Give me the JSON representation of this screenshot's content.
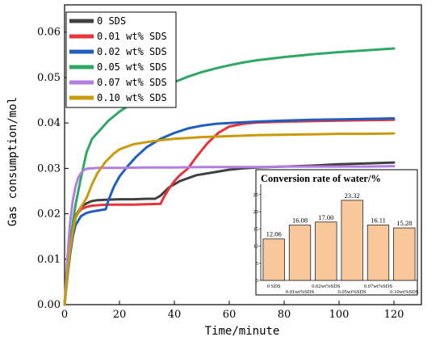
{
  "chart_data": [
    {
      "type": "line",
      "title": "",
      "xlabel": "Time/minute",
      "ylabel": "Gas consumption/mol",
      "xlim": [
        0,
        130
      ],
      "ylim": [
        0,
        0.066
      ],
      "xticks": [
        "0",
        "20",
        "40",
        "60",
        "80",
        "100",
        "120"
      ],
      "yticks": [
        "0.00",
        "0.01",
        "0.02",
        "0.03",
        "0.04",
        "0.05",
        "0.06"
      ],
      "legend": "top-left",
      "grid": false,
      "series": [
        {
          "name": "0 SDS",
          "color": "#404040",
          "x": [
            0,
            1,
            2,
            3,
            4,
            6,
            8,
            10,
            12,
            15,
            20,
            25,
            30,
            33,
            35,
            38,
            42,
            48,
            55,
            60,
            65,
            70,
            80,
            90,
            100,
            110,
            120
          ],
          "y": [
            0,
            0.008,
            0.013,
            0.017,
            0.0195,
            0.0215,
            0.0223,
            0.0228,
            0.023,
            0.0231,
            0.0232,
            0.0232,
            0.0233,
            0.0233,
            0.024,
            0.0258,
            0.0272,
            0.0285,
            0.0292,
            0.0297,
            0.03,
            0.0302,
            0.0304,
            0.0306,
            0.0309,
            0.0311,
            0.0313
          ]
        },
        {
          "name": "0.01 wt% SDS",
          "color": "#e8333a",
          "x": [
            0,
            1,
            2,
            3,
            4,
            6,
            8,
            10,
            15,
            20,
            25,
            30,
            35,
            36,
            38,
            40,
            42,
            45,
            48,
            52,
            56,
            60,
            65,
            70,
            80,
            90,
            100,
            110,
            120
          ],
          "y": [
            0,
            0.008,
            0.014,
            0.0175,
            0.0195,
            0.021,
            0.0215,
            0.0218,
            0.022,
            0.022,
            0.022,
            0.0221,
            0.0222,
            0.0235,
            0.0255,
            0.0272,
            0.0285,
            0.03,
            0.0325,
            0.0355,
            0.0378,
            0.0392,
            0.0398,
            0.0401,
            0.0403,
            0.0404,
            0.0405,
            0.0406,
            0.0407
          ]
        },
        {
          "name": "0.02 wt% SDS",
          "color": "#1f5fbf",
          "x": [
            0,
            1,
            2,
            3,
            4,
            6,
            8,
            10,
            12,
            15,
            16,
            18,
            20,
            23,
            26,
            30,
            35,
            40,
            45,
            50,
            55,
            60,
            70,
            80,
            90,
            100,
            110,
            120
          ],
          "y": [
            0,
            0.006,
            0.011,
            0.015,
            0.0175,
            0.0195,
            0.0202,
            0.0205,
            0.0207,
            0.021,
            0.023,
            0.026,
            0.0282,
            0.0305,
            0.0325,
            0.0347,
            0.0365,
            0.0378,
            0.0388,
            0.0394,
            0.0398,
            0.04,
            0.0403,
            0.0405,
            0.0407,
            0.0408,
            0.0409,
            0.041
          ]
        },
        {
          "name": "0.05 wt% SDS",
          "color": "#2fa864",
          "x": [
            0,
            1,
            2,
            3,
            4,
            6,
            8,
            10,
            13,
            16,
            20,
            25,
            30,
            35,
            40,
            45,
            50,
            55,
            60,
            65,
            70,
            80,
            90,
            100,
            110,
            120
          ],
          "y": [
            0,
            0.006,
            0.012,
            0.018,
            0.022,
            0.028,
            0.0335,
            0.0365,
            0.0385,
            0.0405,
            0.0425,
            0.0445,
            0.0462,
            0.0478,
            0.049,
            0.0502,
            0.0512,
            0.052,
            0.0527,
            0.0533,
            0.0538,
            0.0545,
            0.0551,
            0.0556,
            0.056,
            0.0564
          ]
        },
        {
          "name": "0.07 wt% SDS",
          "color": "#b27ee0",
          "x": [
            0,
            1,
            2,
            3,
            4,
            5,
            6,
            7,
            8,
            9,
            10,
            12,
            15,
            20,
            30,
            40,
            50,
            60,
            70,
            80,
            90,
            100,
            110,
            120
          ],
          "y": [
            0,
            0.01,
            0.018,
            0.023,
            0.026,
            0.028,
            0.029,
            0.0296,
            0.0299,
            0.03,
            0.03,
            0.0301,
            0.0301,
            0.0301,
            0.0302,
            0.0302,
            0.0303,
            0.0303,
            0.0303,
            0.0304,
            0.0304,
            0.0304,
            0.0304,
            0.0305
          ]
        },
        {
          "name": "0.10 wt% SDS",
          "color": "#c99a0a",
          "x": [
            0,
            1,
            2,
            3,
            4,
            6,
            8,
            10,
            12,
            15,
            18,
            20,
            25,
            30,
            35,
            40,
            45,
            50,
            60,
            70,
            80,
            90,
            100,
            110,
            120
          ],
          "y": [
            0,
            0.007,
            0.012,
            0.016,
            0.019,
            0.0215,
            0.0235,
            0.0265,
            0.029,
            0.0315,
            0.0333,
            0.0342,
            0.0353,
            0.0358,
            0.0362,
            0.0365,
            0.0367,
            0.0369,
            0.0371,
            0.0373,
            0.0374,
            0.0375,
            0.0376,
            0.0376,
            0.0377
          ]
        }
      ]
    },
    {
      "type": "bar",
      "title": "Conversion rate of water/%",
      "categories": [
        "0 SDS",
        "0.01wt%SDS",
        "0.02wt%SDS",
        "0.05wt%SDS",
        "0.07wt%SDS",
        "0.10wt%SDS"
      ],
      "values": [
        12.06,
        16.08,
        17.0,
        23.32,
        16.11,
        15.28
      ],
      "value_labels": [
        "12.06",
        "16.08",
        "17.00",
        "23.32",
        "16.11",
        "15.28"
      ],
      "yticks": [
        "0",
        "5",
        "10",
        "15",
        "20",
        "25"
      ],
      "ylim": [
        0,
        28
      ],
      "bar_color": "#f9c89a",
      "bar_edge": "#222222"
    }
  ]
}
